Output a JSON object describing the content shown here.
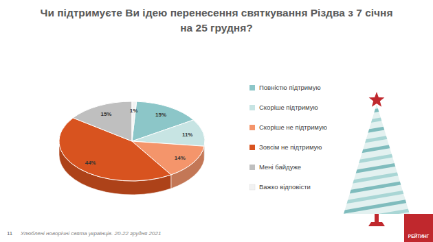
{
  "chart_data": {
    "type": "pie",
    "title": "Чи підтримуєте Ви ідею перенесення святкування Різдва з 7 січня на 25 грудня?",
    "categories": [
      "Повністю підтримую",
      "Скоріше підтримую",
      "Скоріше  не підтримую",
      "Зовсім не підтримую",
      "Мені байдуже",
      "Важко відповісти"
    ],
    "values": [
      15,
      11,
      14,
      44,
      15,
      1
    ],
    "value_labels": [
      "15%",
      "11%",
      "14%",
      "44%",
      "15%",
      "1%"
    ],
    "colors": [
      "#8cc6c8",
      "#c7e4e3",
      "#f4956b",
      "#d8531f",
      "#bfbfbf",
      "#f2f2f2"
    ],
    "data_labels": true,
    "legend": "right",
    "annotations": [
      "11",
      "Улюблені новорічні свята українців. 20-22 грудня 2021",
      "РЕЙТИНГ"
    ]
  }
}
